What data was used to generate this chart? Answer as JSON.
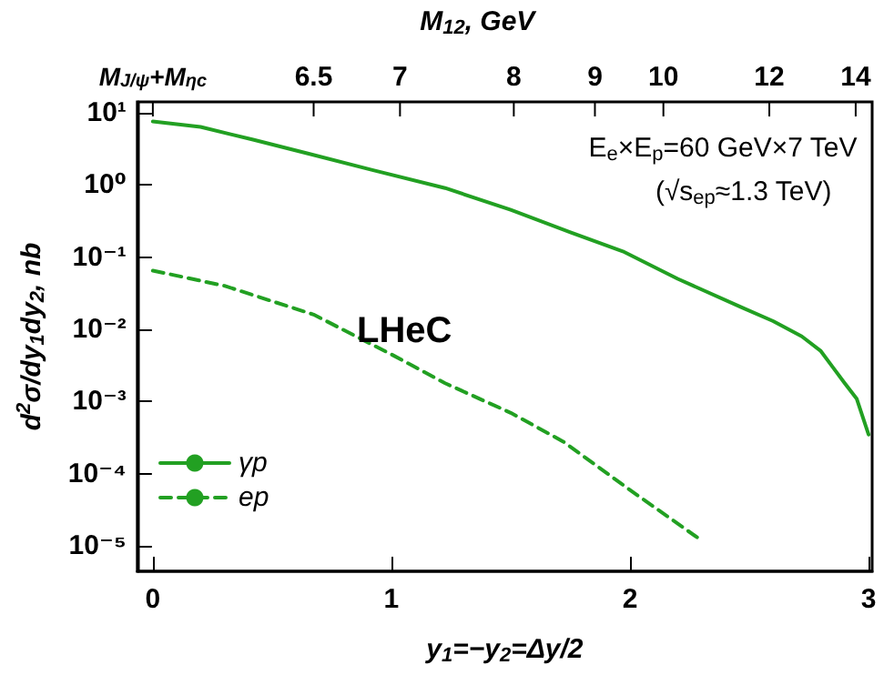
{
  "chart_data": {
    "type": "line",
    "xlabel": "y$_{1}$=−y$_{2}$=Δy/2",
    "ylabel": "d$^{2}$σ/dy$_{1}$dy$_{2}$, nb",
    "xlim": [
      -0.065,
      3.015
    ],
    "xticks": [
      0,
      1,
      2,
      3
    ],
    "ylim": [
      4.5e-06,
      14
    ],
    "log": "y",
    "yticks": [
      {
        "value": 1e-05,
        "label": "10⁻⁵"
      },
      {
        "value": 0.0001,
        "label": "10⁻⁴"
      },
      {
        "value": 0.001,
        "label": "10⁻³"
      },
      {
        "value": 0.01,
        "label": "10⁻²"
      },
      {
        "value": 0.1,
        "label": "10⁻¹"
      },
      {
        "value": 1,
        "label": "10⁰"
      },
      {
        "value": 10,
        "label": "10¹"
      }
    ],
    "legend": "bottom left",
    "grid": false,
    "marker": "none",
    "series": [
      {
        "name": "γp",
        "color": "#22a022",
        "line_style": "solid",
        "x": [
          0,
          0.2,
          0.42,
          0.65,
          0.92,
          1.225,
          1.5,
          1.75,
          1.97,
          2.2,
          2.47,
          2.6,
          2.72,
          2.8,
          2.85,
          2.9,
          2.95,
          3.0
        ],
        "values": [
          7.5,
          6.3,
          4.2,
          2.7,
          1.6,
          0.9,
          0.45,
          0.22,
          0.12,
          0.05,
          0.02,
          0.013,
          0.008,
          0.005,
          0.003,
          0.0018,
          0.0011,
          0.00035
        ]
      },
      {
        "name": "ep",
        "color": "#22a022",
        "line_style": "dashed",
        "x": [
          0,
          0.3,
          0.674,
          1.0,
          1.225,
          1.5,
          1.72,
          2.0,
          2.3
        ],
        "values": [
          0.065,
          0.04,
          0.016,
          0.0045,
          0.0018,
          0.0007,
          0.00028,
          6e-05,
          1.2e-05
        ]
      }
    ],
    "annotations": [
      "LHeC",
      "E$_{e}$×E$_{p}$=60 GeV×7 TeV",
      "(√s$_{ep}$≈1.3 TeV)",
      "M$_{12}$, GeV",
      "M$_{J/ψ}$+M$_{ηc}$",
      "6.5",
      "7",
      "8",
      "9",
      "10",
      "12",
      "14"
    ]
  }
}
